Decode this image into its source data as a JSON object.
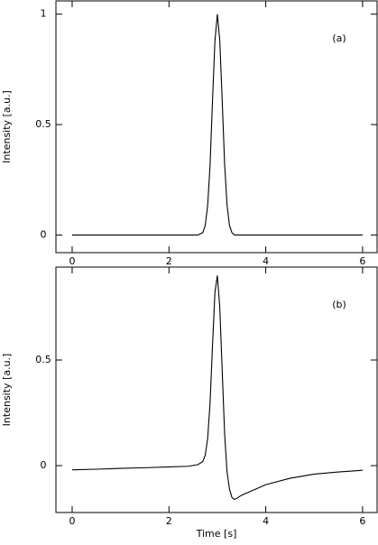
{
  "chart_data": [
    {
      "type": "line",
      "annotation": "(a)",
      "ylabel": "Intensity [a.u.]",
      "x": [
        0,
        0.5,
        1,
        1.5,
        2,
        2.4,
        2.6,
        2.7,
        2.75,
        2.8,
        2.85,
        2.9,
        2.95,
        3.0,
        3.05,
        3.1,
        3.15,
        3.2,
        3.25,
        3.3,
        3.35,
        3.4,
        3.5,
        4,
        4.5,
        5,
        5.5,
        6
      ],
      "values": [
        0,
        0,
        0,
        0,
        0,
        0,
        0,
        0.011,
        0.044,
        0.135,
        0.32,
        0.61,
        0.88,
        1,
        0.88,
        0.61,
        0.32,
        0.135,
        0.044,
        0.011,
        0,
        0,
        0,
        0,
        0,
        0,
        0,
        0
      ],
      "color": "#000000",
      "xlim": [
        -0.335,
        6.3
      ],
      "ylim": [
        -0.08,
        1.06
      ],
      "xticks": [
        0,
        2,
        4,
        6
      ],
      "yticks": [
        0,
        0.5,
        1
      ]
    },
    {
      "type": "line",
      "annotation": "(b)",
      "ylabel": "Intensity [a.u.]",
      "xlabel": "Time [s]",
      "x": [
        0,
        0.5,
        1,
        1.5,
        2,
        2.4,
        2.6,
        2.7,
        2.75,
        2.8,
        2.85,
        2.9,
        2.95,
        3.0,
        3.05,
        3.1,
        3.15,
        3.2,
        3.25,
        3.3,
        3.35,
        3.4,
        3.5,
        4,
        4.5,
        5,
        5.5,
        6
      ],
      "values": [
        -0.02,
        -0.017,
        -0.013,
        -0.01,
        -0.006,
        -0.003,
        0.005,
        0.02,
        0.05,
        0.13,
        0.3,
        0.57,
        0.82,
        0.9,
        0.75,
        0.45,
        0.15,
        -0.03,
        -0.11,
        -0.15,
        -0.16,
        -0.155,
        -0.14,
        -0.09,
        -0.06,
        -0.04,
        -0.03,
        -0.022
      ],
      "color": "#000000",
      "xlim": [
        -0.335,
        6.3
      ],
      "ylim": [
        -0.222,
        0.94
      ],
      "xticks": [
        0,
        2,
        4,
        6
      ],
      "yticks": [
        0,
        0.5
      ]
    }
  ]
}
